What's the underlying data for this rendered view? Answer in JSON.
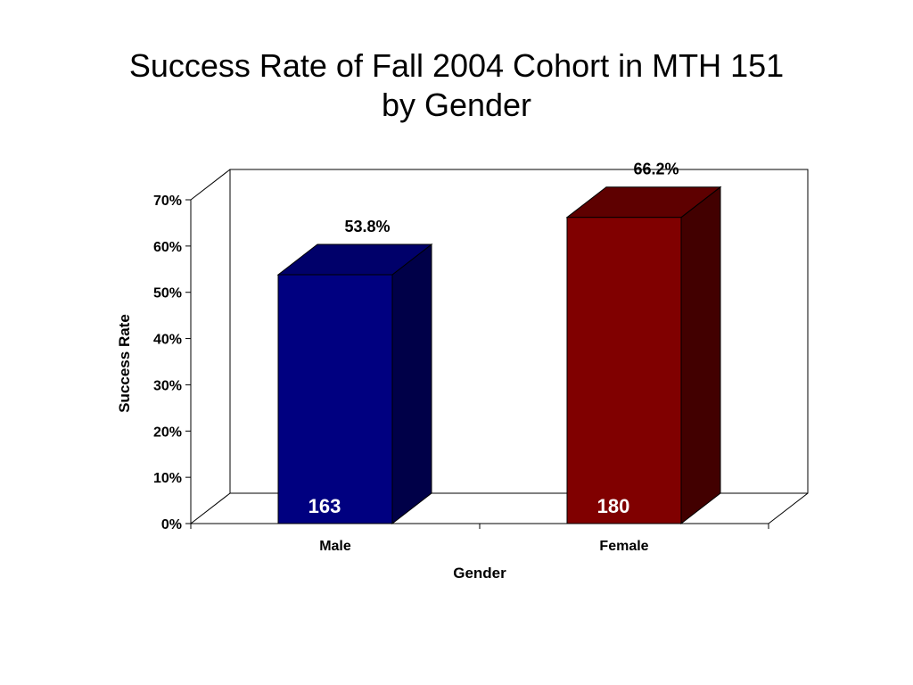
{
  "chart_data": {
    "type": "bar",
    "title_line1": "Success Rate of Fall 2004 Cohort in MTH 151",
    "title_line2": "by Gender",
    "xlabel": "Gender",
    "ylabel": "Success Rate",
    "categories": [
      "Male",
      "Female"
    ],
    "values": [
      53.8,
      66.2
    ],
    "value_labels": [
      "53.8%",
      "66.2%"
    ],
    "count_labels": [
      "163",
      "180"
    ],
    "ylim": [
      0,
      70
    ],
    "yticks": [
      0,
      10,
      20,
      30,
      40,
      50,
      60,
      70
    ],
    "ytick_labels": [
      "0%",
      "10%",
      "20%",
      "30%",
      "40%",
      "50%",
      "60%",
      "70%"
    ],
    "colors": {
      "Male": {
        "front": "#000080",
        "top": "#00006A",
        "side": "#000048"
      },
      "Female": {
        "front": "#800000",
        "top": "#5E0000",
        "side": "#420000"
      }
    },
    "style": "3d",
    "grid": false
  }
}
